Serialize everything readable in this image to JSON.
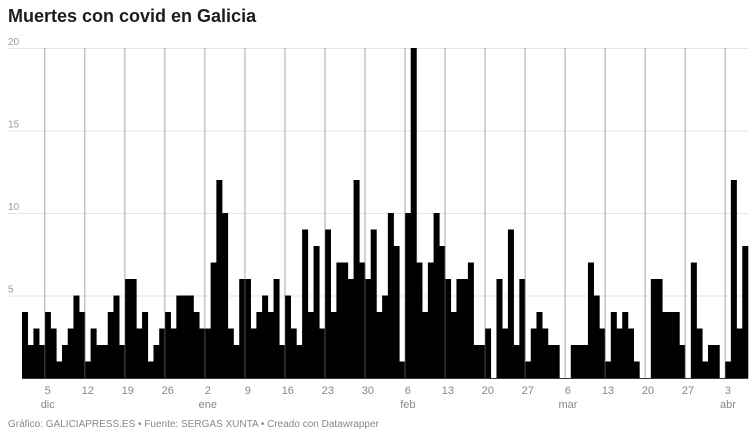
{
  "chart_data": {
    "type": "bar",
    "title": "Muertes con covid en Galicia",
    "xlabel": "",
    "ylabel": "",
    "ylim": [
      0,
      20
    ],
    "grid": true,
    "y_ticks": [
      "5",
      "10",
      "15",
      "20"
    ],
    "x_ticks": [
      {
        "date": "5 dic",
        "label": "5",
        "month": "dic"
      },
      {
        "date": "12 dic",
        "label": "12",
        "month": ""
      },
      {
        "date": "19 dic",
        "label": "19",
        "month": ""
      },
      {
        "date": "26 dic",
        "label": "26",
        "month": ""
      },
      {
        "date": "2 ene",
        "label": "2",
        "month": "ene"
      },
      {
        "date": "9 ene",
        "label": "9",
        "month": ""
      },
      {
        "date": "16 ene",
        "label": "16",
        "month": ""
      },
      {
        "date": "23 ene",
        "label": "23",
        "month": ""
      },
      {
        "date": "30 ene",
        "label": "30",
        "month": ""
      },
      {
        "date": "6 feb",
        "label": "6",
        "month": "feb"
      },
      {
        "date": "13 feb",
        "label": "13",
        "month": ""
      },
      {
        "date": "20 feb",
        "label": "20",
        "month": ""
      },
      {
        "date": "27 feb",
        "label": "27",
        "month": ""
      },
      {
        "date": "6 mar",
        "label": "6",
        "month": "mar"
      },
      {
        "date": "13 mar",
        "label": "13",
        "month": ""
      },
      {
        "date": "20 mar",
        "label": "20",
        "month": ""
      },
      {
        "date": "27 mar",
        "label": "27",
        "month": ""
      },
      {
        "date": "3 abr",
        "label": "3",
        "month": "abr"
      }
    ],
    "x": [
      "1 dic",
      "2 dic",
      "3 dic",
      "4 dic",
      "5 dic",
      "6 dic",
      "7 dic",
      "8 dic",
      "9 dic",
      "10 dic",
      "11 dic",
      "12 dic",
      "13 dic",
      "14 dic",
      "15 dic",
      "16 dic",
      "17 dic",
      "18 dic",
      "19 dic",
      "20 dic",
      "21 dic",
      "22 dic",
      "23 dic",
      "24 dic",
      "25 dic",
      "26 dic",
      "27 dic",
      "28 dic",
      "29 dic",
      "30 dic",
      "31 dic",
      "1 ene",
      "2 ene",
      "3 ene",
      "4 ene",
      "5 ene",
      "6 ene",
      "7 ene",
      "8 ene",
      "9 ene",
      "10 ene",
      "11 ene",
      "12 ene",
      "13 ene",
      "14 ene",
      "15 ene",
      "16 ene",
      "17 ene",
      "18 ene",
      "19 ene",
      "20 ene",
      "21 ene",
      "22 ene",
      "23 ene",
      "24 ene",
      "25 ene",
      "26 ene",
      "27 ene",
      "28 ene",
      "29 ene",
      "30 ene",
      "31 ene",
      "1 feb",
      "2 feb",
      "3 feb",
      "4 feb",
      "5 feb",
      "6 feb",
      "7 feb",
      "8 feb",
      "9 feb",
      "10 feb",
      "11 feb",
      "12 feb",
      "13 feb",
      "14 feb",
      "15 feb",
      "16 feb",
      "17 feb",
      "18 feb",
      "19 feb",
      "20 feb",
      "21 feb",
      "22 feb",
      "23 feb",
      "24 feb",
      "25 feb",
      "26 feb",
      "27 feb",
      "28 feb",
      "1 mar",
      "2 mar",
      "3 mar",
      "4 mar",
      "5 mar",
      "6 mar",
      "7 mar",
      "8 mar",
      "9 mar",
      "10 mar",
      "11 mar",
      "12 mar",
      "13 mar",
      "14 mar",
      "15 mar",
      "16 mar",
      "17 mar",
      "18 mar",
      "19 mar",
      "20 mar",
      "21 mar",
      "22 mar",
      "23 mar",
      "24 mar",
      "25 mar",
      "26 mar",
      "27 mar",
      "28 mar",
      "29 mar",
      "30 mar",
      "31 mar",
      "1 abr",
      "2 abr",
      "3 abr",
      "4 abr",
      "5 abr",
      "6 abr"
    ],
    "values": [
      4,
      2,
      3,
      2,
      4,
      3,
      1,
      2,
      3,
      5,
      4,
      1,
      3,
      2,
      2,
      4,
      5,
      2,
      6,
      6,
      3,
      4,
      1,
      2,
      3,
      4,
      3,
      5,
      5,
      5,
      4,
      3,
      3,
      7,
      12,
      10,
      3,
      2,
      6,
      6,
      3,
      4,
      5,
      4,
      6,
      2,
      5,
      3,
      2,
      9,
      4,
      8,
      3,
      9,
      4,
      7,
      7,
      6,
      12,
      7,
      6,
      9,
      4,
      5,
      10,
      8,
      1,
      10,
      20,
      7,
      4,
      7,
      10,
      8,
      6,
      4,
      6,
      6,
      7,
      2,
      2,
      3,
      0,
      6,
      3,
      9,
      2,
      6,
      1,
      3,
      4,
      3,
      2,
      2,
      0,
      0,
      2,
      2,
      2,
      7,
      5,
      3,
      1,
      4,
      3,
      4,
      3,
      1,
      0,
      0,
      6,
      6,
      4,
      4,
      4,
      2,
      0,
      7,
      3,
      1,
      2,
      2,
      0,
      1,
      12,
      3,
      8
    ],
    "bar_color": "#000000"
  },
  "footer": "Gráfico: GALICIAPRESS.ES • Fuente: SERGAS XUNTA • Creado con Datawrapper"
}
